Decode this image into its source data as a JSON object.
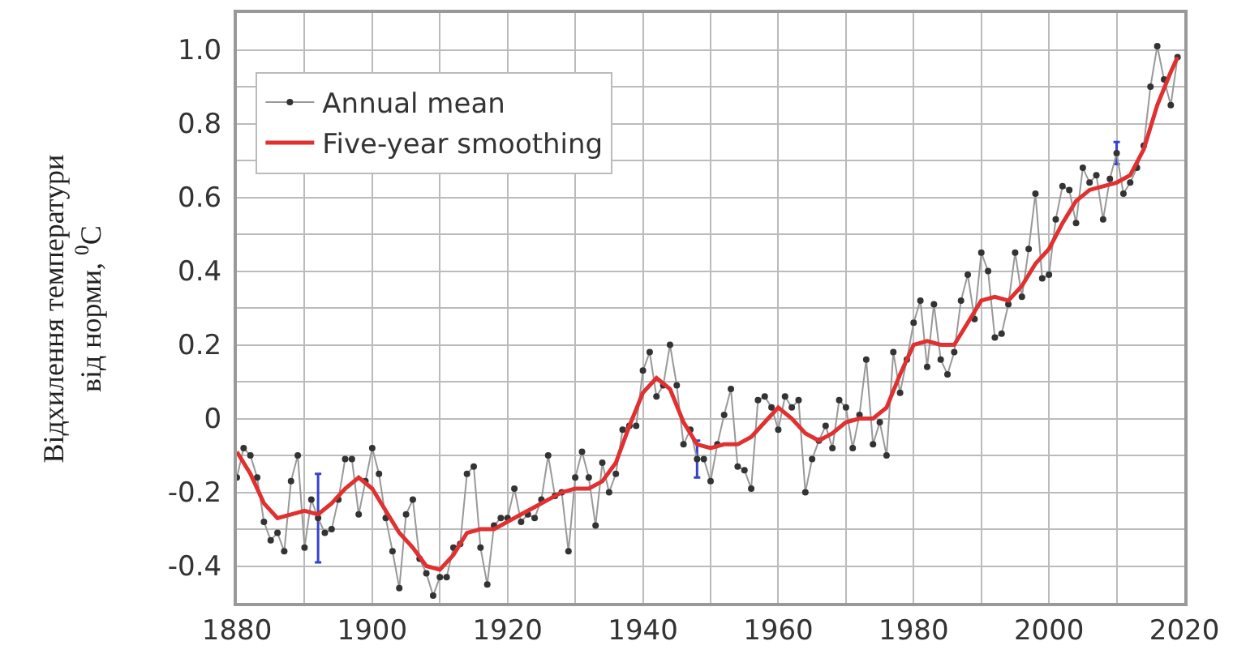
{
  "chart_data": {
    "type": "line",
    "ylabel": "Відхилення температури\nвід норми, $^{0}$C",
    "xlim": [
      1880,
      2020
    ],
    "xticks": [
      1880,
      {
        "value": 1890,
        "label": null
      },
      1900,
      {
        "value": 1910,
        "label": null
      },
      1920,
      {
        "value": 1930,
        "label": null
      },
      1940,
      {
        "value": 1950,
        "label": null
      },
      1960,
      {
        "value": 1970,
        "label": null
      },
      1980,
      {
        "value": 1990,
        "label": null
      },
      2000,
      {
        "value": 2010,
        "label": null
      },
      2020
    ],
    "ylim": [
      -0.5,
      1.1
    ],
    "yticks": [
      {
        "value": -0.5,
        "label": null
      },
      -0.4,
      {
        "value": -0.3,
        "label": null
      },
      -0.2,
      {
        "value": -0.1,
        "label": null
      },
      0,
      {
        "value": 0.1,
        "label": null
      },
      0.2,
      {
        "value": 0.3,
        "label": null
      },
      0.4,
      {
        "value": 0.5,
        "label": null
      },
      0.6,
      {
        "value": 0.7,
        "label": null
      },
      0.8,
      {
        "value": 0.9,
        "label": null
      },
      {
        "value": 1.0,
        "label": "1.0"
      }
    ],
    "grid": true,
    "legend": "top left",
    "series": [
      {
        "name": "Annual mean",
        "color": "#333333",
        "marker": "circle",
        "x": [
          1880,
          1881,
          1882,
          1883,
          1884,
          1885,
          1886,
          1887,
          1888,
          1889,
          1890,
          1891,
          1892,
          1893,
          1894,
          1895,
          1896,
          1897,
          1898,
          1899,
          1900,
          1901,
          1902,
          1903,
          1904,
          1905,
          1906,
          1907,
          1908,
          1909,
          1910,
          1911,
          1912,
          1913,
          1914,
          1915,
          1916,
          1917,
          1918,
          1919,
          1920,
          1921,
          1922,
          1923,
          1924,
          1925,
          1926,
          1927,
          1928,
          1929,
          1930,
          1931,
          1932,
          1933,
          1934,
          1935,
          1936,
          1937,
          1938,
          1939,
          1940,
          1941,
          1942,
          1943,
          1944,
          1945,
          1946,
          1947,
          1948,
          1949,
          1950,
          1951,
          1952,
          1953,
          1954,
          1955,
          1956,
          1957,
          1958,
          1959,
          1960,
          1961,
          1962,
          1963,
          1964,
          1965,
          1966,
          1967,
          1968,
          1969,
          1970,
          1971,
          1972,
          1973,
          1974,
          1975,
          1976,
          1977,
          1978,
          1979,
          1980,
          1981,
          1982,
          1983,
          1984,
          1985,
          1986,
          1987,
          1988,
          1989,
          1990,
          1991,
          1992,
          1993,
          1994,
          1995,
          1996,
          1997,
          1998,
          1999,
          2000,
          2001,
          2002,
          2003,
          2004,
          2005,
          2006,
          2007,
          2008,
          2009,
          2010,
          2011,
          2012,
          2013,
          2014,
          2015,
          2016,
          2017,
          2018,
          2019
        ],
        "values": [
          -0.16,
          -0.08,
          -0.1,
          -0.16,
          -0.28,
          -0.33,
          -0.31,
          -0.36,
          -0.17,
          -0.1,
          -0.35,
          -0.22,
          -0.27,
          -0.31,
          -0.3,
          -0.22,
          -0.11,
          -0.11,
          -0.26,
          -0.17,
          -0.08,
          -0.15,
          -0.27,
          -0.36,
          -0.46,
          -0.26,
          -0.22,
          -0.38,
          -0.42,
          -0.48,
          -0.43,
          -0.43,
          -0.35,
          -0.34,
          -0.15,
          -0.13,
          -0.35,
          -0.45,
          -0.29,
          -0.27,
          -0.27,
          -0.19,
          -0.28,
          -0.26,
          -0.27,
          -0.22,
          -0.1,
          -0.21,
          -0.2,
          -0.36,
          -0.16,
          -0.09,
          -0.16,
          -0.29,
          -0.12,
          -0.2,
          -0.15,
          -0.03,
          -0.02,
          -0.02,
          0.13,
          0.18,
          0.06,
          0.09,
          0.2,
          0.09,
          -0.07,
          -0.03,
          -0.11,
          -0.11,
          -0.17,
          -0.07,
          0.01,
          0.08,
          -0.13,
          -0.14,
          -0.19,
          0.05,
          0.06,
          0.03,
          -0.03,
          0.06,
          0.03,
          0.05,
          -0.2,
          -0.11,
          -0.06,
          -0.02,
          -0.08,
          0.05,
          0.03,
          -0.08,
          0.01,
          0.16,
          -0.07,
          -0.01,
          -0.1,
          0.18,
          0.07,
          0.16,
          0.26,
          0.32,
          0.14,
          0.31,
          0.16,
          0.12,
          0.18,
          0.32,
          0.39,
          0.27,
          0.45,
          0.4,
          0.22,
          0.23,
          0.31,
          0.45,
          0.33,
          0.46,
          0.61,
          0.38,
          0.39,
          0.54,
          0.63,
          0.62,
          0.53,
          0.68,
          0.64,
          0.66,
          0.54,
          0.65,
          0.72,
          0.61,
          0.64,
          0.68,
          0.74,
          0.9,
          1.01,
          0.92,
          0.85,
          0.98
        ],
        "errors": [
          null,
          null,
          null,
          null,
          null,
          null,
          null,
          null,
          null,
          null,
          null,
          null,
          0.12,
          null,
          null,
          null,
          null,
          null,
          null,
          null,
          null,
          null,
          null,
          null,
          null,
          null,
          null,
          null,
          null,
          null,
          null,
          null,
          null,
          null,
          null,
          null,
          null,
          null,
          null,
          null,
          null,
          null,
          null,
          null,
          null,
          null,
          null,
          null,
          null,
          null,
          null,
          null,
          null,
          null,
          null,
          null,
          null,
          null,
          null,
          null,
          null,
          null,
          null,
          null,
          null,
          null,
          null,
          null,
          0.05,
          null,
          null,
          null,
          null,
          null,
          null,
          null,
          null,
          null,
          null,
          null,
          null,
          null,
          null,
          null,
          null,
          null,
          null,
          null,
          null,
          null,
          null,
          null,
          null,
          null,
          null,
          null,
          null,
          null,
          null,
          null,
          null,
          null,
          null,
          null,
          null,
          null,
          null,
          null,
          null,
          null,
          null,
          null,
          null,
          null,
          null,
          null,
          null,
          null,
          null,
          null,
          null,
          null,
          null,
          null,
          null,
          null,
          null,
          null,
          null,
          null,
          0.03,
          null,
          null,
          null,
          null,
          null,
          null,
          null,
          null,
          null
        ]
      },
      {
        "name": "Five-year smoothing",
        "color": "#e03030",
        "x": [
          1880,
          1882,
          1884,
          1886,
          1888,
          1890,
          1892,
          1894,
          1896,
          1898,
          1900,
          1902,
          1904,
          1906,
          1908,
          1910,
          1912,
          1914,
          1916,
          1918,
          1920,
          1922,
          1924,
          1926,
          1928,
          1930,
          1932,
          1934,
          1936,
          1938,
          1940,
          1942,
          1944,
          1946,
          1948,
          1950,
          1952,
          1954,
          1956,
          1958,
          1960,
          1962,
          1964,
          1966,
          1968,
          1970,
          1972,
          1974,
          1976,
          1978,
          1980,
          1982,
          1984,
          1986,
          1988,
          1990,
          1992,
          1994,
          1996,
          1998,
          2000,
          2002,
          2004,
          2006,
          2008,
          2010,
          2012,
          2014,
          2016,
          2018,
          2019
        ],
        "values": [
          -0.09,
          -0.15,
          -0.23,
          -0.27,
          -0.26,
          -0.25,
          -0.26,
          -0.23,
          -0.19,
          -0.16,
          -0.19,
          -0.25,
          -0.31,
          -0.35,
          -0.4,
          -0.41,
          -0.37,
          -0.31,
          -0.3,
          -0.3,
          -0.28,
          -0.26,
          -0.24,
          -0.22,
          -0.2,
          -0.19,
          -0.19,
          -0.17,
          -0.12,
          -0.02,
          0.07,
          0.11,
          0.08,
          -0.01,
          -0.07,
          -0.08,
          -0.07,
          -0.07,
          -0.05,
          -0.01,
          0.03,
          0.0,
          -0.04,
          -0.06,
          -0.04,
          -0.01,
          0.0,
          0.0,
          0.03,
          0.12,
          0.2,
          0.21,
          0.2,
          0.2,
          0.26,
          0.32,
          0.33,
          0.32,
          0.36,
          0.42,
          0.46,
          0.53,
          0.59,
          0.62,
          0.63,
          0.64,
          0.66,
          0.73,
          0.85,
          0.94,
          0.98
        ]
      }
    ]
  }
}
